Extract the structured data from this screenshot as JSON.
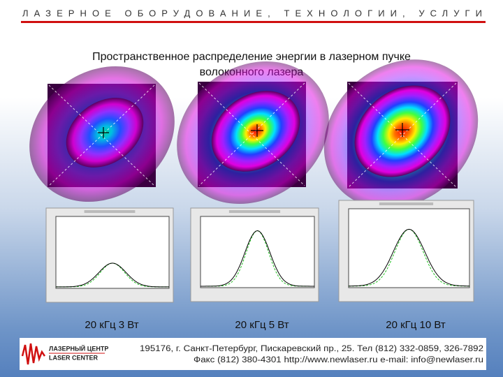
{
  "header": {
    "tagline": "ЛАЗЕРНОЕ ОБОРУДОВАНИЕ, ТЕХНОЛОГИИ, УСЛУГИ"
  },
  "title": [
    "Пространственное распределение энергии в лазерном пучке",
    "волоконного лазера"
  ],
  "panels": [
    {
      "caption": "20 кГц 3 Вт"
    },
    {
      "caption": "20 кГц 5 Вт"
    },
    {
      "caption": "20 кГц 10 Вт"
    }
  ],
  "footer": {
    "logo": [
      "ЛАЗЕРНЫЙ ЦЕНТР",
      "LASER CENTER"
    ],
    "address": "195176, г. Санкт-Петербург, Пискаревский пр., 25. Тел (812) 332-0859, 326-7892",
    "contacts": "Факс (812) 380-4301   http://www.newlaser.ru   e-mail: info@newlaser.ru"
  }
}
